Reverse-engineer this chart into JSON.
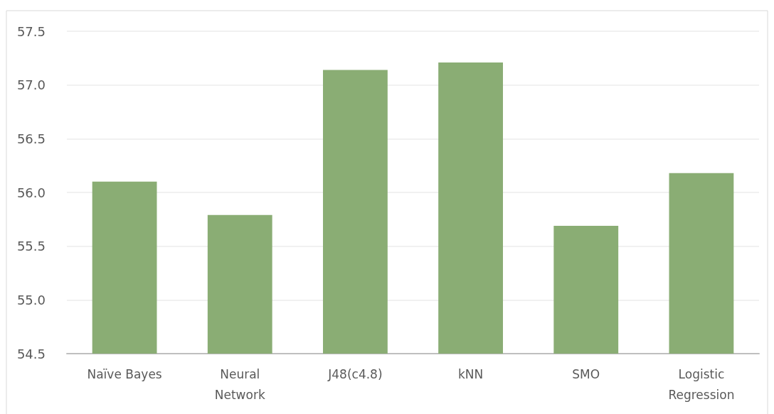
{
  "chart_data": {
    "type": "bar",
    "categories": [
      "Naïve Bayes",
      "Neural\nNetwork",
      "J48(c4.8)",
      "kNN",
      "SMO",
      "Logistic\nRegression"
    ],
    "values": [
      56.1,
      55.79,
      57.14,
      57.21,
      55.69,
      56.18
    ],
    "color": "#8aad74",
    "ylim": [
      54.5,
      57.5
    ],
    "yticks": [
      {
        "value": 54.5,
        "label": "54.5"
      },
      {
        "value": 55,
        "label": "55.0"
      },
      {
        "value": 55.5,
        "label": "55.5"
      },
      {
        "value": 56,
        "label": "56.0"
      },
      {
        "value": 56.5,
        "label": "56.5"
      },
      {
        "value": 57,
        "label": "57.0"
      },
      {
        "value": 57.5,
        "label": "57.5"
      }
    ],
    "grid": "y"
  }
}
